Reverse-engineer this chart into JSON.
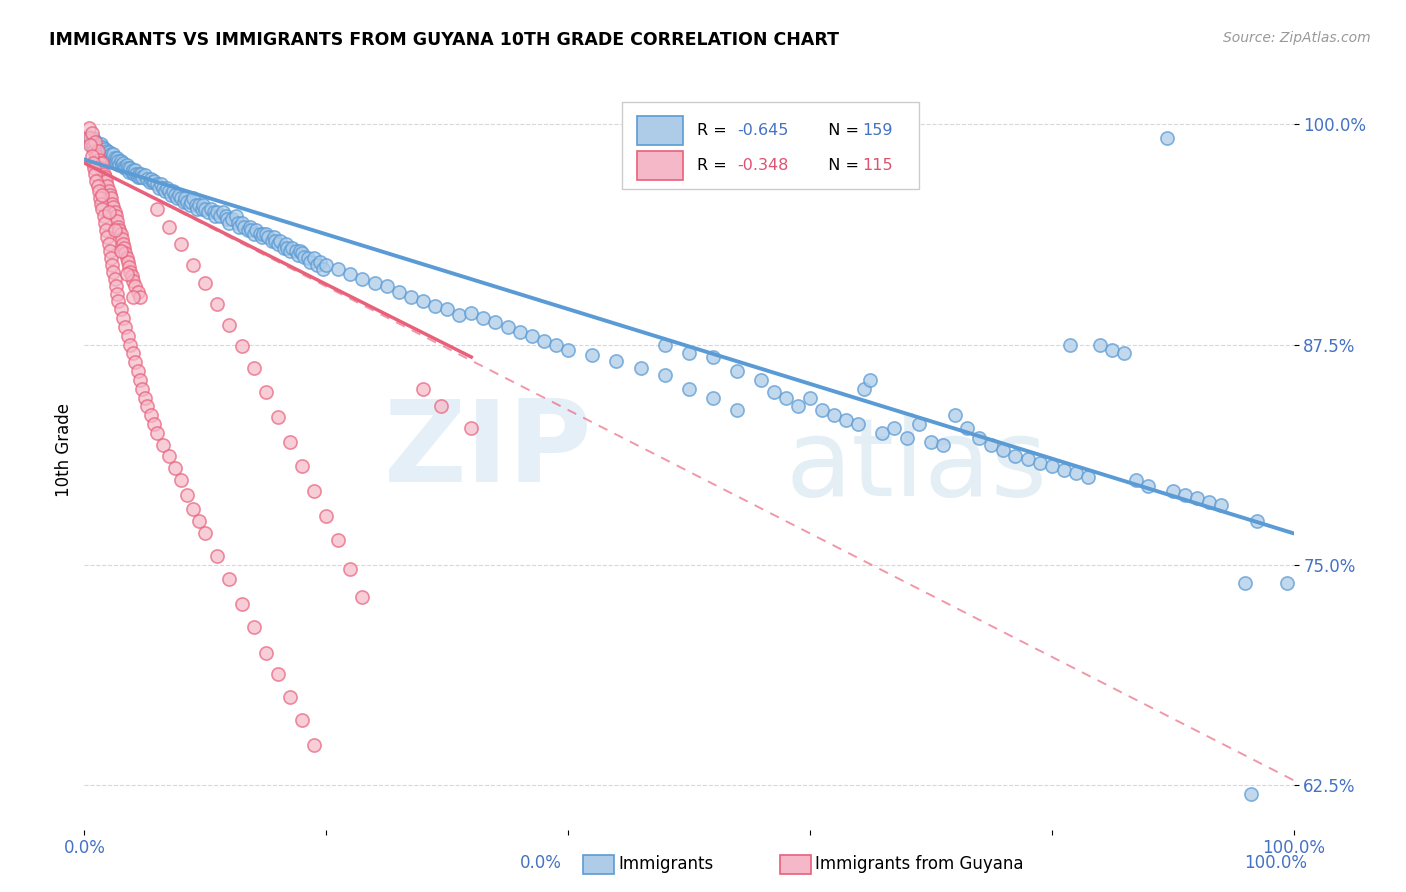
{
  "title": "IMMIGRANTS VS IMMIGRANTS FROM GUYANA 10TH GRADE CORRELATION CHART",
  "source": "Source: ZipAtlas.com",
  "ylabel": "10th Grade",
  "xlim": [
    0.0,
    1.0
  ],
  "ylim": [
    0.6,
    1.03
  ],
  "yticks": [
    0.625,
    0.75,
    0.875,
    1.0
  ],
  "ytick_labels": [
    "62.5%",
    "75.0%",
    "87.5%",
    "100.0%"
  ],
  "watermark_zip": "ZIP",
  "watermark_atlas": "atlas",
  "blue_color": "#5b9bd5",
  "blue_fill": "#aecce8",
  "pink_color": "#e8607a",
  "pink_fill": "#f5b8c8",
  "blue_line": [
    [
      0.0,
      0.98
    ],
    [
      1.0,
      0.768
    ]
  ],
  "pink_line_solid": [
    [
      0.0,
      0.978
    ],
    [
      0.32,
      0.868
    ]
  ],
  "pink_line_dashed": [
    [
      0.0,
      0.978
    ],
    [
      1.0,
      0.628
    ]
  ],
  "blue_scatter": [
    [
      0.003,
      0.993
    ],
    [
      0.005,
      0.99
    ],
    [
      0.006,
      0.988
    ],
    [
      0.007,
      0.992
    ],
    [
      0.008,
      0.987
    ],
    [
      0.009,
      0.985
    ],
    [
      0.01,
      0.99
    ],
    [
      0.011,
      0.988
    ],
    [
      0.012,
      0.986
    ],
    [
      0.013,
      0.984
    ],
    [
      0.014,
      0.989
    ],
    [
      0.015,
      0.987
    ],
    [
      0.016,
      0.984
    ],
    [
      0.017,
      0.986
    ],
    [
      0.018,
      0.983
    ],
    [
      0.019,
      0.985
    ],
    [
      0.02,
      0.984
    ],
    [
      0.021,
      0.982
    ],
    [
      0.022,
      0.983
    ],
    [
      0.023,
      0.981
    ],
    [
      0.024,
      0.983
    ],
    [
      0.025,
      0.981
    ],
    [
      0.026,
      0.979
    ],
    [
      0.027,
      0.981
    ],
    [
      0.028,
      0.979
    ],
    [
      0.029,
      0.977
    ],
    [
      0.03,
      0.979
    ],
    [
      0.031,
      0.977
    ],
    [
      0.032,
      0.978
    ],
    [
      0.033,
      0.976
    ],
    [
      0.034,
      0.975
    ],
    [
      0.035,
      0.977
    ],
    [
      0.036,
      0.975
    ],
    [
      0.037,
      0.973
    ],
    [
      0.038,
      0.975
    ],
    [
      0.039,
      0.973
    ],
    [
      0.04,
      0.974
    ],
    [
      0.041,
      0.972
    ],
    [
      0.042,
      0.974
    ],
    [
      0.043,
      0.972
    ],
    [
      0.044,
      0.97
    ],
    [
      0.045,
      0.972
    ],
    [
      0.046,
      0.97
    ],
    [
      0.047,
      0.972
    ],
    [
      0.048,
      0.97
    ],
    [
      0.05,
      0.971
    ],
    [
      0.052,
      0.969
    ],
    [
      0.054,
      0.967
    ],
    [
      0.055,
      0.969
    ],
    [
      0.057,
      0.967
    ],
    [
      0.058,
      0.968
    ],
    [
      0.06,
      0.966
    ],
    [
      0.062,
      0.964
    ],
    [
      0.063,
      0.966
    ],
    [
      0.065,
      0.964
    ],
    [
      0.067,
      0.962
    ],
    [
      0.068,
      0.964
    ],
    [
      0.07,
      0.962
    ],
    [
      0.072,
      0.96
    ],
    [
      0.073,
      0.962
    ],
    [
      0.075,
      0.96
    ],
    [
      0.077,
      0.958
    ],
    [
      0.078,
      0.96
    ],
    [
      0.08,
      0.958
    ],
    [
      0.082,
      0.956
    ],
    [
      0.083,
      0.958
    ],
    [
      0.085,
      0.956
    ],
    [
      0.087,
      0.954
    ],
    [
      0.088,
      0.956
    ],
    [
      0.09,
      0.958
    ],
    [
      0.092,
      0.954
    ],
    [
      0.093,
      0.952
    ],
    [
      0.095,
      0.954
    ],
    [
      0.097,
      0.952
    ],
    [
      0.098,
      0.954
    ],
    [
      0.1,
      0.952
    ],
    [
      0.102,
      0.95
    ],
    [
      0.105,
      0.952
    ],
    [
      0.107,
      0.95
    ],
    [
      0.108,
      0.948
    ],
    [
      0.11,
      0.95
    ],
    [
      0.112,
      0.948
    ],
    [
      0.115,
      0.95
    ],
    [
      0.117,
      0.948
    ],
    [
      0.118,
      0.946
    ],
    [
      0.12,
      0.944
    ],
    [
      0.122,
      0.946
    ],
    [
      0.125,
      0.948
    ],
    [
      0.127,
      0.944
    ],
    [
      0.128,
      0.942
    ],
    [
      0.13,
      0.944
    ],
    [
      0.132,
      0.942
    ],
    [
      0.135,
      0.94
    ],
    [
      0.137,
      0.942
    ],
    [
      0.138,
      0.94
    ],
    [
      0.14,
      0.938
    ],
    [
      0.142,
      0.94
    ],
    [
      0.145,
      0.938
    ],
    [
      0.147,
      0.936
    ],
    [
      0.148,
      0.938
    ],
    [
      0.15,
      0.938
    ],
    [
      0.152,
      0.936
    ],
    [
      0.155,
      0.934
    ],
    [
      0.157,
      0.936
    ],
    [
      0.158,
      0.934
    ],
    [
      0.16,
      0.932
    ],
    [
      0.162,
      0.934
    ],
    [
      0.165,
      0.93
    ],
    [
      0.167,
      0.932
    ],
    [
      0.168,
      0.93
    ],
    [
      0.17,
      0.928
    ],
    [
      0.172,
      0.93
    ],
    [
      0.175,
      0.928
    ],
    [
      0.177,
      0.926
    ],
    [
      0.178,
      0.928
    ],
    [
      0.18,
      0.927
    ],
    [
      0.182,
      0.925
    ],
    [
      0.185,
      0.924
    ],
    [
      0.187,
      0.922
    ],
    [
      0.19,
      0.924
    ],
    [
      0.192,
      0.92
    ],
    [
      0.195,
      0.922
    ],
    [
      0.197,
      0.918
    ],
    [
      0.2,
      0.92
    ],
    [
      0.21,
      0.918
    ],
    [
      0.22,
      0.915
    ],
    [
      0.23,
      0.912
    ],
    [
      0.24,
      0.91
    ],
    [
      0.25,
      0.908
    ],
    [
      0.26,
      0.905
    ],
    [
      0.27,
      0.902
    ],
    [
      0.28,
      0.9
    ],
    [
      0.29,
      0.897
    ],
    [
      0.3,
      0.895
    ],
    [
      0.31,
      0.892
    ],
    [
      0.32,
      0.893
    ],
    [
      0.33,
      0.89
    ],
    [
      0.34,
      0.888
    ],
    [
      0.35,
      0.885
    ],
    [
      0.36,
      0.882
    ],
    [
      0.37,
      0.88
    ],
    [
      0.38,
      0.877
    ],
    [
      0.39,
      0.875
    ],
    [
      0.4,
      0.872
    ],
    [
      0.42,
      0.869
    ],
    [
      0.44,
      0.866
    ],
    [
      0.46,
      0.862
    ],
    [
      0.48,
      0.858
    ],
    [
      0.5,
      0.85
    ],
    [
      0.52,
      0.845
    ],
    [
      0.54,
      0.838
    ],
    [
      0.48,
      0.875
    ],
    [
      0.5,
      0.87
    ],
    [
      0.52,
      0.868
    ],
    [
      0.54,
      0.86
    ],
    [
      0.56,
      0.855
    ],
    [
      0.57,
      0.848
    ],
    [
      0.58,
      0.845
    ],
    [
      0.59,
      0.84
    ],
    [
      0.6,
      0.845
    ],
    [
      0.61,
      0.838
    ],
    [
      0.62,
      0.835
    ],
    [
      0.63,
      0.832
    ],
    [
      0.64,
      0.83
    ],
    [
      0.645,
      0.85
    ],
    [
      0.65,
      0.855
    ],
    [
      0.66,
      0.825
    ],
    [
      0.67,
      0.828
    ],
    [
      0.68,
      0.822
    ],
    [
      0.69,
      0.83
    ],
    [
      0.7,
      0.82
    ],
    [
      0.71,
      0.818
    ],
    [
      0.72,
      0.835
    ],
    [
      0.73,
      0.828
    ],
    [
      0.74,
      0.822
    ],
    [
      0.75,
      0.818
    ],
    [
      0.76,
      0.815
    ],
    [
      0.77,
      0.812
    ],
    [
      0.78,
      0.81
    ],
    [
      0.79,
      0.808
    ],
    [
      0.8,
      0.806
    ],
    [
      0.81,
      0.804
    ],
    [
      0.815,
      0.875
    ],
    [
      0.82,
      0.802
    ],
    [
      0.83,
      0.8
    ],
    [
      0.84,
      0.875
    ],
    [
      0.85,
      0.872
    ],
    [
      0.86,
      0.87
    ],
    [
      0.87,
      0.798
    ],
    [
      0.88,
      0.795
    ],
    [
      0.895,
      0.992
    ],
    [
      0.9,
      0.792
    ],
    [
      0.91,
      0.79
    ],
    [
      0.92,
      0.788
    ],
    [
      0.93,
      0.786
    ],
    [
      0.94,
      0.784
    ],
    [
      0.96,
      0.74
    ],
    [
      0.965,
      0.62
    ],
    [
      0.97,
      0.775
    ],
    [
      0.995,
      0.74
    ]
  ],
  "pink_scatter": [
    [
      0.004,
      0.998
    ],
    [
      0.005,
      0.992
    ],
    [
      0.006,
      0.995
    ],
    [
      0.007,
      0.988
    ],
    [
      0.008,
      0.985
    ],
    [
      0.009,
      0.99
    ],
    [
      0.01,
      0.982
    ],
    [
      0.011,
      0.985
    ],
    [
      0.012,
      0.98
    ],
    [
      0.013,
      0.978
    ],
    [
      0.014,
      0.975
    ],
    [
      0.015,
      0.978
    ],
    [
      0.016,
      0.972
    ],
    [
      0.017,
      0.97
    ],
    [
      0.018,
      0.968
    ],
    [
      0.019,
      0.965
    ],
    [
      0.02,
      0.962
    ],
    [
      0.021,
      0.96
    ],
    [
      0.022,
      0.958
    ],
    [
      0.023,
      0.955
    ],
    [
      0.024,
      0.953
    ],
    [
      0.025,
      0.95
    ],
    [
      0.026,
      0.948
    ],
    [
      0.027,
      0.945
    ],
    [
      0.028,
      0.942
    ],
    [
      0.029,
      0.94
    ],
    [
      0.03,
      0.938
    ],
    [
      0.031,
      0.935
    ],
    [
      0.032,
      0.932
    ],
    [
      0.033,
      0.93
    ],
    [
      0.034,
      0.927
    ],
    [
      0.035,
      0.924
    ],
    [
      0.036,
      0.922
    ],
    [
      0.037,
      0.919
    ],
    [
      0.038,
      0.916
    ],
    [
      0.039,
      0.914
    ],
    [
      0.04,
      0.911
    ],
    [
      0.042,
      0.908
    ],
    [
      0.044,
      0.905
    ],
    [
      0.046,
      0.902
    ],
    [
      0.005,
      0.988
    ],
    [
      0.006,
      0.982
    ],
    [
      0.007,
      0.978
    ],
    [
      0.008,
      0.975
    ],
    [
      0.009,
      0.972
    ],
    [
      0.01,
      0.968
    ],
    [
      0.011,
      0.965
    ],
    [
      0.012,
      0.962
    ],
    [
      0.013,
      0.958
    ],
    [
      0.014,
      0.955
    ],
    [
      0.015,
      0.952
    ],
    [
      0.016,
      0.948
    ],
    [
      0.017,
      0.944
    ],
    [
      0.018,
      0.94
    ],
    [
      0.019,
      0.936
    ],
    [
      0.02,
      0.932
    ],
    [
      0.021,
      0.928
    ],
    [
      0.022,
      0.924
    ],
    [
      0.023,
      0.92
    ],
    [
      0.024,
      0.916
    ],
    [
      0.025,
      0.912
    ],
    [
      0.026,
      0.908
    ],
    [
      0.027,
      0.904
    ],
    [
      0.028,
      0.9
    ],
    [
      0.03,
      0.895
    ],
    [
      0.032,
      0.89
    ],
    [
      0.034,
      0.885
    ],
    [
      0.036,
      0.88
    ],
    [
      0.038,
      0.875
    ],
    [
      0.04,
      0.87
    ],
    [
      0.042,
      0.865
    ],
    [
      0.044,
      0.86
    ],
    [
      0.046,
      0.855
    ],
    [
      0.048,
      0.85
    ],
    [
      0.05,
      0.845
    ],
    [
      0.052,
      0.84
    ],
    [
      0.055,
      0.835
    ],
    [
      0.058,
      0.83
    ],
    [
      0.06,
      0.825
    ],
    [
      0.065,
      0.818
    ],
    [
      0.07,
      0.812
    ],
    [
      0.075,
      0.805
    ],
    [
      0.08,
      0.798
    ],
    [
      0.085,
      0.79
    ],
    [
      0.09,
      0.782
    ],
    [
      0.095,
      0.775
    ],
    [
      0.1,
      0.768
    ],
    [
      0.11,
      0.755
    ],
    [
      0.12,
      0.742
    ],
    [
      0.13,
      0.728
    ],
    [
      0.14,
      0.715
    ],
    [
      0.15,
      0.7
    ],
    [
      0.16,
      0.688
    ],
    [
      0.17,
      0.675
    ],
    [
      0.18,
      0.662
    ],
    [
      0.19,
      0.648
    ],
    [
      0.06,
      0.952
    ],
    [
      0.07,
      0.942
    ],
    [
      0.08,
      0.932
    ],
    [
      0.09,
      0.92
    ],
    [
      0.1,
      0.91
    ],
    [
      0.11,
      0.898
    ],
    [
      0.12,
      0.886
    ],
    [
      0.13,
      0.874
    ],
    [
      0.14,
      0.862
    ],
    [
      0.15,
      0.848
    ],
    [
      0.16,
      0.834
    ],
    [
      0.17,
      0.82
    ],
    [
      0.18,
      0.806
    ],
    [
      0.19,
      0.792
    ],
    [
      0.2,
      0.778
    ],
    [
      0.21,
      0.764
    ],
    [
      0.22,
      0.748
    ],
    [
      0.23,
      0.732
    ],
    [
      0.015,
      0.96
    ],
    [
      0.02,
      0.95
    ],
    [
      0.025,
      0.94
    ],
    [
      0.03,
      0.928
    ],
    [
      0.035,
      0.915
    ],
    [
      0.04,
      0.902
    ],
    [
      0.28,
      0.85
    ],
    [
      0.295,
      0.84
    ],
    [
      0.32,
      0.828
    ]
  ]
}
